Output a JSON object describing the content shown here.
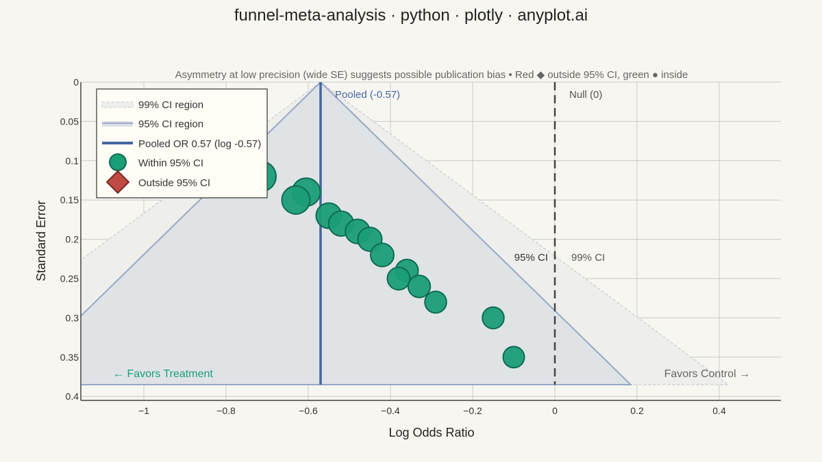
{
  "chart_data": {
    "type": "scatter",
    "title": "funnel-meta-analysis · python · plotly · anyplot.ai",
    "subtitle": "Asymmetry at low precision (wide SE) suggests possible publication bias  •  Red ◆ outside 95% CI, green ● inside",
    "xlabel": "Log Odds Ratio",
    "ylabel": "Standard Error",
    "xlim": [
      -1.15,
      0.55
    ],
    "ylim": [
      0.405,
      0
    ],
    "y_reversed": true,
    "xticks": [
      -1,
      -0.8,
      -0.6,
      -0.4,
      -0.2,
      0,
      0.2,
      0.4
    ],
    "xtick_labels": [
      "−1",
      "−0.8",
      "−0.6",
      "−0.4",
      "−0.2",
      "0",
      "0.2",
      "0.4"
    ],
    "yticks": [
      0,
      0.05,
      0.1,
      0.15,
      0.2,
      0.25,
      0.3,
      0.35,
      0.4
    ],
    "ytick_labels": [
      "0",
      "0.05",
      "0.1",
      "0.15",
      "0.2",
      "0.25",
      "0.3",
      "0.35",
      "0.4"
    ],
    "grid": true,
    "pooled_log_or": -0.57,
    "null_value": 0,
    "se_max": 0.385,
    "ci95_z": 1.96,
    "ci99_z": 2.576,
    "series": [
      {
        "name": "Within 95% CI",
        "color": "#1a9e77",
        "marker": "circle",
        "points": [
          {
            "x": -0.715,
            "y": 0.12,
            "weight": 1.0
          },
          {
            "x": -0.605,
            "y": 0.14,
            "weight": 0.85
          },
          {
            "x": -0.63,
            "y": 0.15,
            "weight": 0.85
          },
          {
            "x": -0.55,
            "y": 0.17,
            "weight": 0.65
          },
          {
            "x": -0.52,
            "y": 0.18,
            "weight": 0.62
          },
          {
            "x": -0.48,
            "y": 0.19,
            "weight": 0.58
          },
          {
            "x": -0.45,
            "y": 0.2,
            "weight": 0.55
          },
          {
            "x": -0.42,
            "y": 0.22,
            "weight": 0.5
          },
          {
            "x": -0.36,
            "y": 0.24,
            "weight": 0.45
          },
          {
            "x": -0.38,
            "y": 0.25,
            "weight": 0.45
          },
          {
            "x": -0.33,
            "y": 0.26,
            "weight": 0.42
          },
          {
            "x": -0.29,
            "y": 0.28,
            "weight": 0.38
          },
          {
            "x": -0.15,
            "y": 0.3,
            "weight": 0.38
          },
          {
            "x": -0.1,
            "y": 0.35,
            "weight": 0.35
          }
        ]
      },
      {
        "name": "Outside 95% CI",
        "color": "#c04a44",
        "marker": "diamond",
        "points": []
      }
    ],
    "legend": {
      "placement": "top-left",
      "entries": [
        {
          "label": "99% CI region",
          "kind": "ci99"
        },
        {
          "label": "95% CI region",
          "kind": "ci95"
        },
        {
          "label": "Pooled OR 0.57 (log -0.57)",
          "kind": "pooled"
        },
        {
          "label": "Within 95% CI",
          "kind": "within"
        },
        {
          "label": "Outside 95% CI",
          "kind": "outside"
        }
      ]
    },
    "annotations": {
      "pooled_label": "Pooled (-0.57)",
      "null_label": "Null (0)",
      "ci95_label": "95% CI",
      "ci99_label": "99% CI",
      "favors_treatment": "← Favors Treatment",
      "favors_control": "Favors Control →"
    },
    "colors": {
      "background": "#f8f6f1",
      "ci95_fill": "#dde1e6",
      "ci95_line": "#97a8c9",
      "ci99_fill": "#eeeeea",
      "ci99_line": "#c6ccd3",
      "pooled_line": "#4466a0",
      "pooled_text": "#4466a0",
      "null_line": "#444444",
      "favor_treatment": "#1a9e77",
      "favor_control": "#666666",
      "grid": "#c9c9c9",
      "axis": "#444444",
      "text": "#333333",
      "point_stroke": "#0f6b4f"
    }
  }
}
